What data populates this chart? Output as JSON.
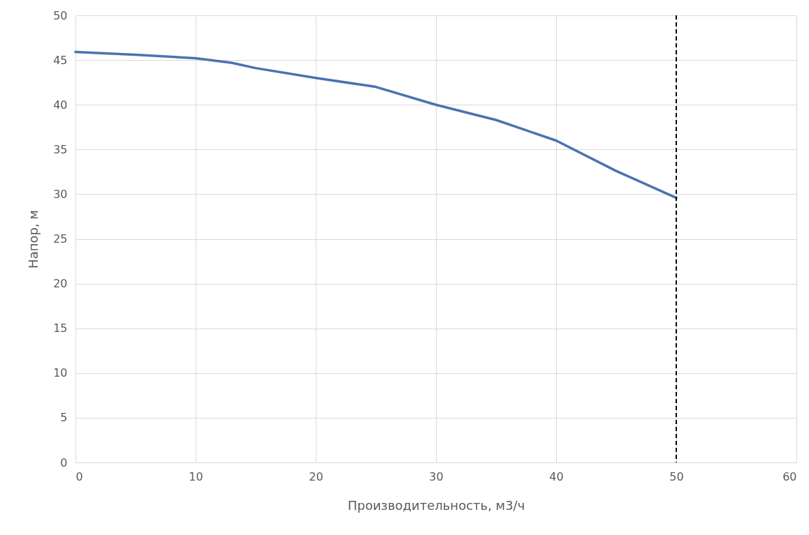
{
  "chart_data": {
    "type": "line",
    "xlabel": "Производительность,  м3/ч",
    "ylabel": "Напор, м",
    "x": [
      0,
      5,
      10,
      13,
      15,
      20,
      25,
      30,
      35,
      40,
      45,
      50
    ],
    "series": [
      {
        "color": "#4a72b0",
        "values": [
          45.9,
          45.6,
          45.2,
          44.7,
          44.1,
          43.0,
          42.0,
          40.0,
          38.3,
          36.0,
          32.6,
          29.6
        ]
      }
    ],
    "xlim": [
      0,
      60
    ],
    "xticks": [
      0,
      10,
      20,
      30,
      40,
      50,
      60
    ],
    "ylim": [
      0,
      50
    ],
    "yticks": [
      0,
      5,
      10,
      15,
      20,
      25,
      30,
      35,
      40,
      45,
      50
    ],
    "grid": true,
    "line_style": "solid",
    "ref_lines": [
      {
        "axis": "x",
        "value": 50,
        "color": "#000000",
        "line_style": "dashed"
      }
    ]
  }
}
